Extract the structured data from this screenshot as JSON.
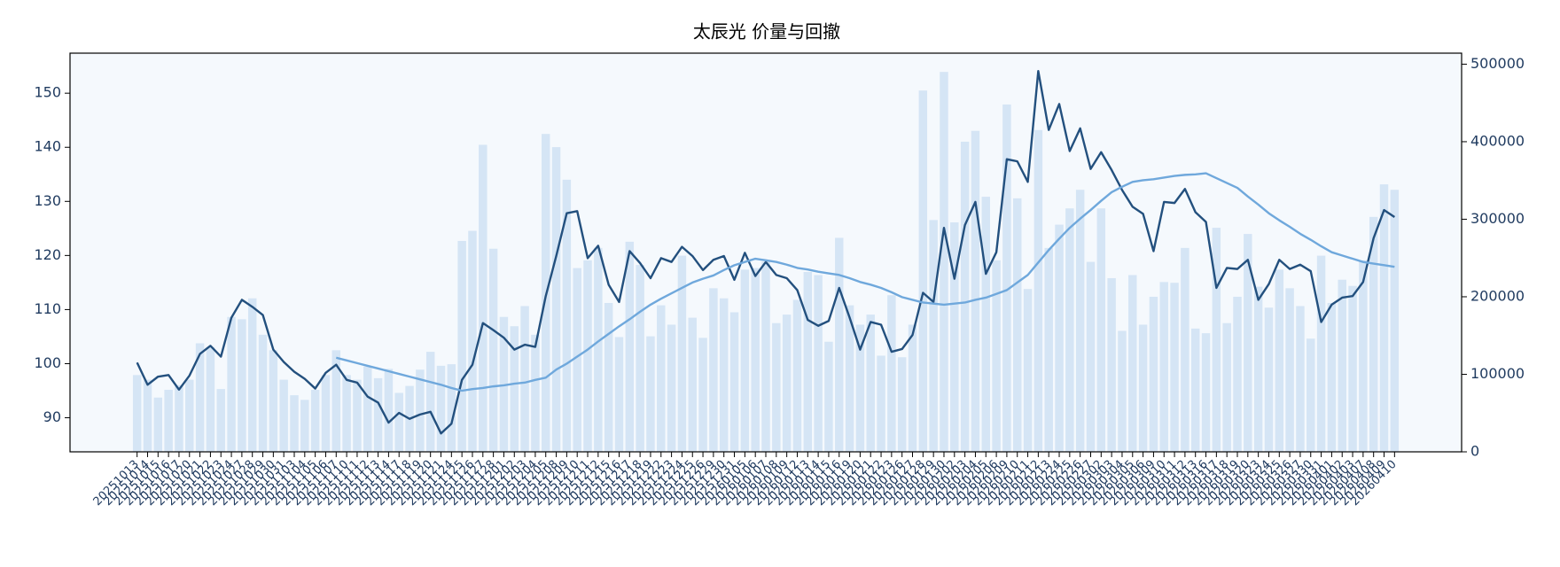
{
  "chart_data": {
    "type": "combo",
    "title": "太辰光 价量与回撤",
    "categories": [
      "20251013",
      "20251014",
      "20251015",
      "20251016",
      "20251017",
      "20251020",
      "20251021",
      "20251022",
      "20251023",
      "20251024",
      "20251027",
      "20251028",
      "20251029",
      "20251030",
      "20251031",
      "20251103",
      "20251104",
      "20251105",
      "20251106",
      "20251107",
      "20251110",
      "20251111",
      "20251112",
      "20251113",
      "20251114",
      "20251117",
      "20251118",
      "20251119",
      "20251120",
      "20251121",
      "20251124",
      "20251125",
      "20251126",
      "20251127",
      "20251128",
      "20251201",
      "20251202",
      "20251203",
      "20251204",
      "20251205",
      "20251208",
      "20251209",
      "20251210",
      "20251211",
      "20251212",
      "20251215",
      "20251216",
      "20251217",
      "20251218",
      "20251219",
      "20251222",
      "20251223",
      "20251224",
      "20251225",
      "20251226",
      "20251229",
      "20251230",
      "20251231",
      "20260105",
      "20260106",
      "20260107",
      "20260108",
      "20260109",
      "20260112",
      "20260113",
      "20260114",
      "20260115",
      "20260116",
      "20260119",
      "20260120",
      "20260121",
      "20260122",
      "20260123",
      "20260126",
      "20260127",
      "20260128",
      "20260129",
      "20260130",
      "20260202",
      "20260203",
      "20260204",
      "20260205",
      "20260206",
      "20260209",
      "20260210",
      "20260211",
      "20260212",
      "20260213",
      "20260224",
      "20260225",
      "20260226",
      "20260227",
      "20260302",
      "20260303",
      "20260304",
      "20260305",
      "20260306",
      "20260309",
      "20260310",
      "20260311",
      "20260312",
      "20260313",
      "20260316",
      "20260317",
      "20260318",
      "20260319",
      "20260320",
      "20260323",
      "20260324",
      "20260325",
      "20260326",
      "20260327",
      "20260330",
      "20260331",
      "20260401",
      "20260402",
      "20260403",
      "20260407",
      "20260408",
      "20260409",
      "20260410"
    ],
    "series": [
      {
        "type": "bar",
        "axis": "y2",
        "color": "#d5e5f5",
        "values": [
          99000,
          93000,
          70000,
          80000,
          86000,
          93000,
          140000,
          135000,
          81000,
          174000,
          171000,
          198000,
          151000,
          131000,
          93000,
          73000,
          67000,
          80000,
          99000,
          131000,
          99000,
          93000,
          110000,
          95000,
          107000,
          76000,
          85000,
          106000,
          129000,
          111000,
          113000,
          272000,
          285000,
          396000,
          262000,
          174000,
          162000,
          188000,
          151000,
          410000,
          393000,
          351000,
          237000,
          247000,
          263000,
          192000,
          148000,
          271000,
          241000,
          149000,
          189000,
          164000,
          253000,
          173000,
          147000,
          211000,
          198000,
          180000,
          235000,
          237000,
          245000,
          166000,
          177000,
          196000,
          232000,
          228000,
          142000,
          276000,
          189000,
          164000,
          177000,
          124000,
          202000,
          122000,
          164000,
          466000,
          299000,
          490000,
          296000,
          400000,
          414000,
          329000,
          247000,
          448000,
          327000,
          210000,
          415000,
          263000,
          293000,
          314000,
          338000,
          245000,
          314000,
          224000,
          156000,
          228000,
          164000,
          200000,
          219000,
          218000,
          263000,
          159000,
          153000,
          289000,
          166000,
          200000,
          281000,
          213000,
          186000,
          235000,
          211000,
          188000,
          146000,
          253000,
          192000,
          222000,
          214000,
          247000,
          303000,
          345000,
          338000
        ]
      },
      {
        "type": "line",
        "color": "#23507e",
        "values": [
          100.2,
          96.1,
          97.6,
          97.9,
          95.2,
          97.8,
          101.8,
          103.3,
          101.3,
          108.5,
          111.8,
          110.5,
          109,
          102.6,
          100.3,
          98.5,
          97.2,
          95.4,
          98.3,
          99.8,
          97,
          96.5,
          93.9,
          92.8,
          89.1,
          90.9,
          89.8,
          90.6,
          91.1,
          87.1,
          88.9,
          97,
          99.8,
          107.5,
          106.2,
          104.8,
          102.6,
          103.5,
          103.1,
          112.5,
          119.9,
          127.8,
          128.2,
          119.5,
          121.8,
          114.6,
          111.4,
          120.8,
          118.6,
          115.8,
          119.5,
          118.8,
          121.6,
          119.9,
          117.3,
          119.2,
          119.9,
          115.5,
          120.5,
          116.2,
          118.8,
          116.4,
          115.8,
          113.6,
          108.1,
          107,
          107.9,
          114,
          108.5,
          102.6,
          107.7,
          107.2,
          102.2,
          102.7,
          105.3,
          113.1,
          111.4,
          125.1,
          115.7,
          125.6,
          129.9,
          116.6,
          120.6,
          137.8,
          137.4,
          133.6,
          154.1,
          143.2,
          148,
          139.3,
          143.5,
          136,
          139.1,
          135.8,
          132.1,
          129,
          127.7,
          120.8,
          129.9,
          129.7,
          132.3,
          128,
          126.2,
          114,
          117.7,
          117.5,
          119.2,
          111.8,
          114.7,
          119.2,
          117.5,
          118.3,
          117.1,
          107.7,
          110.9,
          112.2,
          112.5,
          115.1,
          123.2,
          128.4,
          127.1
        ]
      },
      {
        "type": "line",
        "color": "#6fa8dc",
        "values": [
          null,
          null,
          null,
          null,
          null,
          null,
          null,
          null,
          null,
          null,
          null,
          null,
          null,
          null,
          null,
          null,
          null,
          null,
          null,
          101.1,
          100.6,
          100.1,
          99.6,
          99.1,
          98.6,
          98.1,
          97.6,
          97.1,
          96.6,
          96.1,
          95.5,
          95.0,
          95.3,
          95.5,
          95.8,
          96.0,
          96.3,
          96.5,
          97.0,
          97.4,
          98.9,
          100.0,
          101.3,
          102.6,
          104.1,
          105.5,
          106.9,
          108.2,
          109.6,
          110.9,
          112,
          113,
          114,
          115,
          115.7,
          116.3,
          117.3,
          118.2,
          118.8,
          119.4,
          119.1,
          118.8,
          118.3,
          117.7,
          117.4,
          117,
          116.7,
          116.4,
          115.8,
          115.1,
          114.6,
          114,
          113.2,
          112.3,
          111.8,
          111.3,
          111.1,
          110.9,
          111.1,
          111.3,
          111.8,
          112.2,
          112.9,
          113.6,
          115,
          116.4,
          118.7,
          121,
          123.1,
          125.1,
          126.8,
          128.4,
          130.1,
          131.7,
          132.7,
          133.6,
          133.9,
          134.1,
          134.4,
          134.7,
          134.9,
          135,
          135.2,
          134.3,
          133.4,
          132.5,
          130.9,
          129.4,
          127.8,
          126.5,
          125.3,
          124,
          122.9,
          121.7,
          120.6,
          120,
          119.4,
          118.8,
          118.5,
          118.2,
          117.9
        ]
      }
    ],
    "ylim": [
      83.7,
      157.4
    ],
    "yticks": [
      90,
      100,
      110,
      120,
      130,
      140,
      150
    ],
    "y2lim": [
      0,
      514200
    ],
    "y2ticks": [
      0,
      100000,
      200000,
      300000,
      400000,
      500000
    ],
    "background": "#f5f9fd"
  }
}
